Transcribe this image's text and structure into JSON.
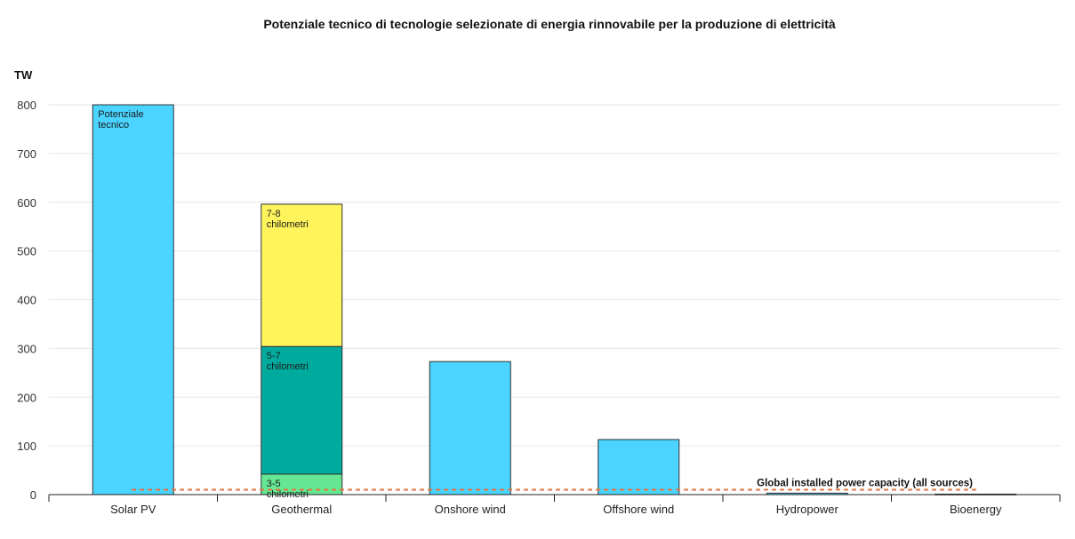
{
  "chart_data": {
    "type": "bar",
    "title": "Potenziale tecnico di tecnologie selezionate di energia rinnovabile per la produzione di elettricità",
    "ylabel": "TW",
    "xlabel": "",
    "ylim": [
      0,
      800
    ],
    "yticks": [
      0,
      100,
      200,
      300,
      400,
      500,
      600,
      700,
      800
    ],
    "grid": true,
    "categories": [
      "Solar PV",
      "Geothermal",
      "Onshore wind",
      "Offshore wind",
      "Hydropower",
      "Bioenergy"
    ],
    "bars": [
      {
        "category": "Solar PV",
        "segments": [
          {
            "value": 800,
            "color": "#4ad4ff",
            "label": [
              "Potenziale",
              "tecnico"
            ]
          }
        ]
      },
      {
        "category": "Geothermal",
        "segments": [
          {
            "value": 42,
            "color": "#66e693",
            "label": [
              "3-5",
              "chilometri"
            ]
          },
          {
            "value": 262,
            "color": "#00ab9e",
            "label": [
              "5-7",
              "chilometri"
            ]
          },
          {
            "value": 292,
            "color": "#fff45c",
            "label": [
              "7-8",
              "chilometri"
            ]
          }
        ]
      },
      {
        "category": "Onshore wind",
        "segments": [
          {
            "value": 273,
            "color": "#4ad4ff"
          }
        ]
      },
      {
        "category": "Offshore wind",
        "segments": [
          {
            "value": 113,
            "color": "#4ad4ff"
          }
        ]
      },
      {
        "category": "Hydropower",
        "segments": [
          {
            "value": 3,
            "color": "#4ad4ff"
          }
        ]
      },
      {
        "category": "Bioenergy",
        "segments": [
          {
            "value": 1,
            "color": "#4ad4ff"
          }
        ]
      }
    ],
    "reference_line": {
      "value": 10,
      "label": "Global installed power capacity (all sources)",
      "color": "#e07a3f",
      "style": "dashed"
    }
  }
}
